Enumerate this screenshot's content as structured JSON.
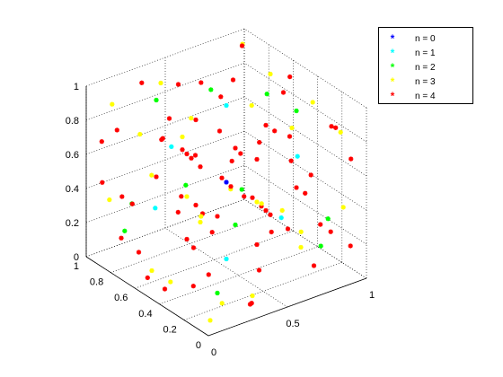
{
  "chart_data": {
    "type": "scatter",
    "projection": "3d",
    "grid": true,
    "legend_position": "top-right",
    "axes": {
      "x": {
        "range": [
          0,
          1
        ],
        "ticks": [
          {
            "value": 0,
            "label": "0"
          },
          {
            "value": 0.5,
            "label": "0.5"
          },
          {
            "value": 1,
            "label": "1"
          }
        ]
      },
      "y": {
        "range": [
          0,
          1
        ],
        "ticks": [
          {
            "value": 0,
            "label": "0"
          },
          {
            "value": 0.2,
            "label": "0.2"
          },
          {
            "value": 0.4,
            "label": "0.4"
          },
          {
            "value": 0.6,
            "label": "0.6"
          },
          {
            "value": 0.8,
            "label": "0.8"
          },
          {
            "value": 1,
            "label": "1"
          }
        ]
      },
      "z": {
        "range": [
          0,
          1
        ],
        "ticks": [
          {
            "value": 0,
            "label": "0"
          },
          {
            "value": 0.2,
            "label": "0.2"
          },
          {
            "value": 0.4,
            "label": "0.4"
          },
          {
            "value": 0.6,
            "label": "0.6"
          },
          {
            "value": 0.8,
            "label": "0.8"
          },
          {
            "value": 1,
            "label": "1"
          }
        ]
      }
    },
    "series": [
      {
        "name": "n = 0",
        "color": "#0000ff",
        "points": [
          [
            0.5,
            0.5,
            0.5
          ]
        ]
      },
      {
        "name": "n = 1",
        "color": "#00ffff",
        "points": [
          [
            0.5,
            0.5,
            0.95
          ],
          [
            0.05,
            0.5,
            0.5
          ],
          [
            0.5,
            0.05,
            0.5
          ],
          [
            0.95,
            0.5,
            0.5
          ],
          [
            0.5,
            0.95,
            0.5
          ],
          [
            0.5,
            0.5,
            0.05
          ]
        ]
      },
      {
        "name": "n = 2",
        "color": "#00ff00",
        "points": [
          [
            0.25,
            0.75,
            0.95
          ],
          [
            0.75,
            0.25,
            0.95
          ],
          [
            0.05,
            0.25,
            0.75
          ],
          [
            0.25,
            0.05,
            0.75
          ],
          [
            0.95,
            0.75,
            0.75
          ],
          [
            0.75,
            0.95,
            0.75
          ],
          [
            0.05,
            0.75,
            0.25
          ],
          [
            0.25,
            0.95,
            0.25
          ],
          [
            0.75,
            0.05,
            0.25
          ],
          [
            0.95,
            0.25,
            0.25
          ],
          [
            0.25,
            0.25,
            0.05
          ],
          [
            0.75,
            0.75,
            0.05
          ]
        ]
      },
      {
        "name": "n = 3",
        "color": "#ffff00",
        "points": [
          [
            0.125,
            0.375,
            0.95
          ],
          [
            0.375,
            0.875,
            0.95
          ],
          [
            0.625,
            0.125,
            0.95
          ],
          [
            0.875,
            0.625,
            0.95
          ],
          [
            0.05,
            0.125,
            0.625
          ],
          [
            0.05,
            0.625,
            0.875
          ],
          [
            0.05,
            0.375,
            0.125
          ],
          [
            0.05,
            0.875,
            0.375
          ],
          [
            0.95,
            0.375,
            0.875
          ],
          [
            0.95,
            0.875,
            0.625
          ],
          [
            0.95,
            0.125,
            0.375
          ],
          [
            0.95,
            0.625,
            0.125
          ],
          [
            0.375,
            0.05,
            0.625
          ],
          [
            0.875,
            0.05,
            0.875
          ],
          [
            0.125,
            0.05,
            0.125
          ],
          [
            0.625,
            0.05,
            0.375
          ],
          [
            0.125,
            0.95,
            0.875
          ],
          [
            0.625,
            0.95,
            0.625
          ],
          [
            0.375,
            0.95,
            0.375
          ],
          [
            0.875,
            0.95,
            0.125
          ],
          [
            0.125,
            0.625,
            0.05
          ],
          [
            0.375,
            0.125,
            0.05
          ],
          [
            0.625,
            0.875,
            0.05
          ],
          [
            0.875,
            0.375,
            0.05
          ],
          [
            0.05,
            0.05,
            0.05
          ],
          [
            0.95,
            0.95,
            0.95
          ],
          [
            0.25,
            0.5,
            0.5
          ],
          [
            0.5,
            0.25,
            0.5
          ]
        ]
      },
      {
        "name": "n = 4",
        "color": "#ff0000",
        "points": [
          [
            0.0625,
            0.1875,
            0.95
          ],
          [
            0.1875,
            0.5625,
            0.95
          ],
          [
            0.3125,
            0.3125,
            0.95
          ],
          [
            0.4375,
            0.8125,
            0.95
          ],
          [
            0.5625,
            0.0625,
            0.95
          ],
          [
            0.6875,
            0.6875,
            0.95
          ],
          [
            0.8125,
            0.4375,
            0.95
          ],
          [
            0.9375,
            0.9375,
            0.95
          ],
          [
            0.05,
            0.0625,
            0.3125
          ],
          [
            0.05,
            0.3125,
            0.5625
          ],
          [
            0.05,
            0.5625,
            0.0625
          ],
          [
            0.05,
            0.8125,
            0.8125
          ],
          [
            0.05,
            0.1875,
            0.1875
          ],
          [
            0.05,
            0.4375,
            0.9375
          ],
          [
            0.05,
            0.6875,
            0.4375
          ],
          [
            0.05,
            0.9375,
            0.6875
          ],
          [
            0.95,
            0.0625,
            0.6875
          ],
          [
            0.95,
            0.3125,
            0.1875
          ],
          [
            0.95,
            0.5625,
            0.9375
          ],
          [
            0.95,
            0.8125,
            0.4375
          ],
          [
            0.95,
            0.1875,
            0.8125
          ],
          [
            0.95,
            0.4375,
            0.3125
          ],
          [
            0.95,
            0.6875,
            0.5625
          ],
          [
            0.95,
            0.9375,
            0.0625
          ],
          [
            0.0625,
            0.05,
            0.5625
          ],
          [
            0.3125,
            0.05,
            0.0625
          ],
          [
            0.5625,
            0.05,
            0.8125
          ],
          [
            0.8125,
            0.05,
            0.3125
          ],
          [
            0.1875,
            0.05,
            0.9375
          ],
          [
            0.4375,
            0.05,
            0.4375
          ],
          [
            0.6875,
            0.05,
            0.6875
          ],
          [
            0.9375,
            0.05,
            0.1875
          ],
          [
            0.0625,
            0.95,
            0.4375
          ],
          [
            0.3125,
            0.95,
            0.9375
          ],
          [
            0.5625,
            0.95,
            0.1875
          ],
          [
            0.8125,
            0.95,
            0.6875
          ],
          [
            0.1875,
            0.95,
            0.3125
          ],
          [
            0.4375,
            0.95,
            0.5625
          ],
          [
            0.6875,
            0.95,
            0.8125
          ],
          [
            0.9375,
            0.95,
            0.3125
          ],
          [
            0.0625,
            0.4375,
            0.05
          ],
          [
            0.1875,
            0.8125,
            0.05
          ],
          [
            0.3125,
            0.0625,
            0.05
          ],
          [
            0.4375,
            0.6875,
            0.05
          ],
          [
            0.5625,
            0.3125,
            0.05
          ],
          [
            0.6875,
            0.9375,
            0.05
          ],
          [
            0.8125,
            0.1875,
            0.05
          ],
          [
            0.9375,
            0.5625,
            0.05
          ],
          [
            0.25,
            0.25,
            0.5
          ],
          [
            0.75,
            0.75,
            0.5
          ],
          [
            0.25,
            0.75,
            0.5
          ],
          [
            0.75,
            0.25,
            0.5
          ],
          [
            0.5,
            0.25,
            0.25
          ],
          [
            0.5,
            0.75,
            0.75
          ],
          [
            0.5,
            0.75,
            0.25
          ],
          [
            0.5,
            0.25,
            0.75
          ],
          [
            0.25,
            0.5,
            0.25
          ],
          [
            0.75,
            0.5,
            0.75
          ],
          [
            0.75,
            0.5,
            0.25
          ],
          [
            0.25,
            0.5,
            0.75
          ],
          [
            0.375,
            0.625,
            0.625
          ],
          [
            0.625,
            0.375,
            0.375
          ],
          [
            0.625,
            0.625,
            0.375
          ],
          [
            0.375,
            0.375,
            0.625
          ],
          [
            0.125,
            0.875,
            0.125
          ],
          [
            0.875,
            0.125,
            0.875
          ],
          [
            0.625,
            0.875,
            0.375
          ],
          [
            0.375,
            0.125,
            0.625
          ],
          [
            0.875,
            0.625,
            0.125
          ],
          [
            0.125,
            0.375,
            0.875
          ]
        ]
      }
    ]
  }
}
